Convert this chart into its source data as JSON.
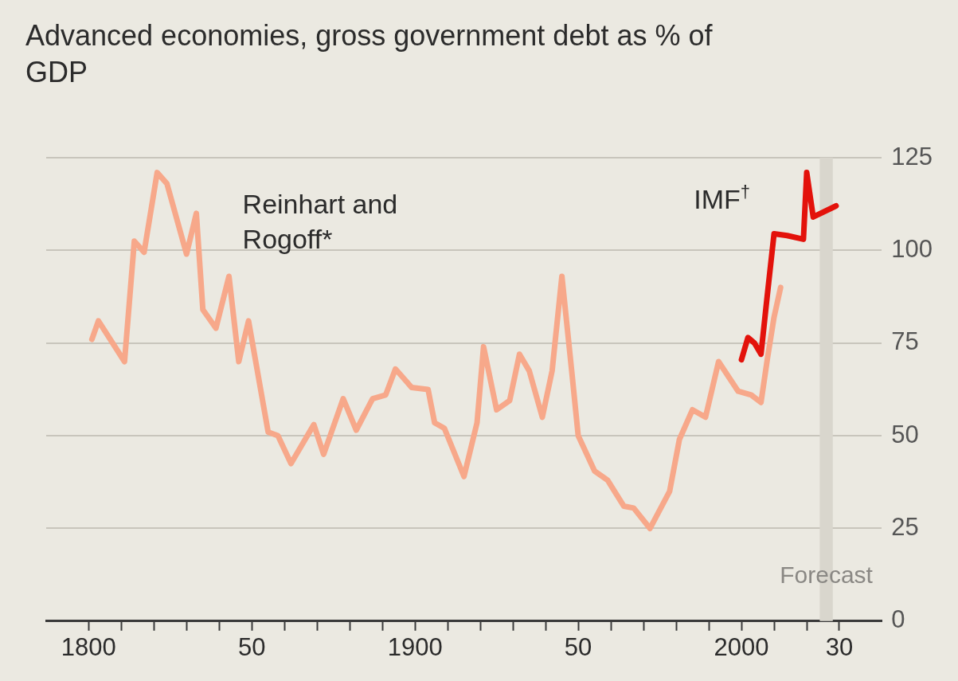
{
  "chart_data": {
    "type": "line",
    "title": "Advanced economies, gross government debt as % of GDP",
    "xlim": [
      1787,
      2043
    ],
    "xticks": [
      {
        "value": 1800,
        "label": "1800"
      },
      {
        "value": 1810,
        "label": null
      },
      {
        "value": 1820,
        "label": null
      },
      {
        "value": 1830,
        "label": null
      },
      {
        "value": 1840,
        "label": null
      },
      {
        "value": 1850,
        "label": "50"
      },
      {
        "value": 1860,
        "label": null
      },
      {
        "value": 1870,
        "label": null
      },
      {
        "value": 1880,
        "label": null
      },
      {
        "value": 1890,
        "label": null
      },
      {
        "value": 1900,
        "label": "1900"
      },
      {
        "value": 1910,
        "label": null
      },
      {
        "value": 1920,
        "label": null
      },
      {
        "value": 1930,
        "label": null
      },
      {
        "value": 1940,
        "label": null
      },
      {
        "value": 1950,
        "label": "50"
      },
      {
        "value": 1960,
        "label": null
      },
      {
        "value": 1970,
        "label": null
      },
      {
        "value": 1980,
        "label": null
      },
      {
        "value": 1990,
        "label": null
      },
      {
        "value": 2000,
        "label": "2000"
      },
      {
        "value": 2010,
        "label": null
      },
      {
        "value": 2020,
        "label": null
      },
      {
        "value": 2030,
        "label": "30"
      }
    ],
    "ylim": [
      0,
      125
    ],
    "yticks": [
      0,
      25,
      50,
      75,
      100,
      125
    ],
    "grid": "y",
    "legend": false,
    "bands": [
      {
        "axis": "x",
        "from": 2024,
        "to": 2028,
        "label": "Forecast",
        "color": "#d9d6cd"
      }
    ],
    "series": [
      {
        "name": "Reinhart and Rogoff*",
        "color": "#f7a88a",
        "x": [
          1801,
          1803,
          1811,
          1814,
          1817,
          1821,
          1824,
          1830,
          1833,
          1835,
          1839,
          1843,
          1846,
          1849,
          1855,
          1858,
          1862,
          1869,
          1872,
          1878,
          1882,
          1887,
          1891,
          1894,
          1899,
          1904,
          1906,
          1909,
          1915,
          1919,
          1921,
          1925,
          1929,
          1932,
          1935,
          1939,
          1942,
          1945,
          1948,
          1950,
          1955,
          1959,
          1964,
          1967,
          1972,
          1978,
          1981,
          1985,
          1989,
          1993,
          1999,
          2003,
          2006,
          2008,
          2010,
          2012
        ],
        "values": [
          76,
          81,
          70,
          102.5,
          99.5,
          121,
          118,
          99,
          110,
          84,
          79,
          93,
          70,
          81,
          51,
          50,
          42.5,
          53,
          45,
          60,
          51.5,
          60,
          61,
          68,
          63,
          62.5,
          53.5,
          52,
          39,
          53.5,
          74,
          57,
          59.5,
          72,
          67.5,
          55,
          67.5,
          93,
          67.5,
          50,
          40.5,
          38,
          31,
          30.5,
          25,
          35,
          49,
          57,
          55,
          70,
          62,
          61,
          59,
          71,
          82,
          90
        ]
      },
      {
        "name": "IMF$^{†}$",
        "color": "#e3120b",
        "x": [
          2000,
          2002,
          2004,
          2006,
          2008,
          2010,
          2014,
          2019,
          2020,
          2022,
          2029
        ],
        "values": [
          70.5,
          76.5,
          75,
          72,
          88.5,
          104.5,
          104,
          103,
          121,
          109,
          112
        ]
      }
    ]
  }
}
